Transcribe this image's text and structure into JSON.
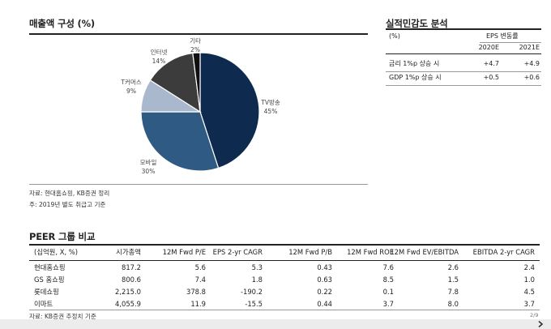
{
  "sales": {
    "title": "매출액 구성 (%)",
    "notes": [
      "자료: 현대홈쇼핑, KB증권 정리",
      "주: 2019년 별도 취급고 기준"
    ]
  },
  "chart_data": {
    "type": "pie",
    "slices": [
      {
        "name": "TV방송",
        "value": 45,
        "label": "45%",
        "color": "#0e2a4f"
      },
      {
        "name": "모바일",
        "value": 30,
        "label": "30%",
        "color": "#2f5a84"
      },
      {
        "name": "T커머스",
        "value": 9,
        "label": "9%",
        "color": "#a9b8cd"
      },
      {
        "name": "인터넷",
        "value": 14,
        "label": "14%",
        "color": "#3c3c3c"
      },
      {
        "name": "기타",
        "value": 2,
        "label": "2%",
        "color": "#101010"
      }
    ]
  },
  "sensitivity": {
    "title": "실적민감도 분석",
    "header": {
      "unit": "(%)",
      "group": "EPS 변동률",
      "cols": [
        "2020E",
        "2021E"
      ]
    },
    "rows": [
      {
        "label": "금리 1%p 상승 시",
        "v2020": "+4.7",
        "v2021": "+4.9"
      },
      {
        "label": "GDP 1%p 상승 시",
        "v2020": "+0.5",
        "v2021": "+0.6"
      }
    ]
  },
  "peer": {
    "title": "PEER 그룹 비교",
    "headers": [
      "(십억원, X, %)",
      "시가총액",
      "12M Fwd P/E",
      "EPS 2-yr CAGR",
      "12M Fwd P/B",
      "12M Fwd ROE",
      "12M Fwd EV/EBITDA",
      "EBITDA 2-yr CAGR"
    ],
    "rows": [
      [
        "현대홈쇼핑",
        "817.2",
        "5.6",
        "5.3",
        "0.43",
        "7.6",
        "2.6",
        "2.4"
      ],
      [
        "GS 홈쇼핑",
        "800.6",
        "7.4",
        "1.8",
        "0.63",
        "8.5",
        "1.5",
        "1.0"
      ],
      [
        "롯데쇼핑",
        "2,215.0",
        "378.8",
        "-190.2",
        "0.22",
        "0.1",
        "7.8",
        "4.5"
      ],
      [
        "이마트",
        "4,055.9",
        "11.9",
        "-15.5",
        "0.44",
        "3.7",
        "8.0",
        "3.7"
      ]
    ],
    "source": "자료: KB증권 추정치 기준"
  },
  "page": {
    "number": "2/9",
    "next_icon": "chevron-right-icon"
  }
}
